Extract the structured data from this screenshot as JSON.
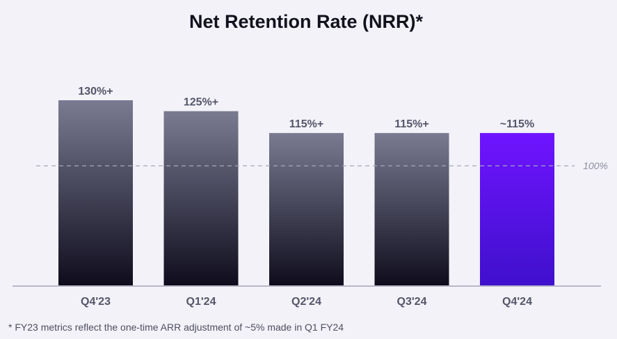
{
  "chart_data": {
    "type": "bar",
    "title": "Net Retention Rate (NRR)*",
    "categories": [
      "Q4'23",
      "Q1'24",
      "Q2'24",
      "Q3'24",
      "Q4'24"
    ],
    "values": [
      130,
      125,
      115,
      115,
      115
    ],
    "data_labels": [
      "130%+",
      "125%+",
      "115%+",
      "115%+",
      "~115%"
    ],
    "highlight_index": 4,
    "reference_line": {
      "value": 100,
      "label": "100%"
    },
    "ylim": [
      45,
      130
    ],
    "grid": false,
    "footnote": "* FY23 metrics reflect the one-time ARR adjustment of ~5% made in Q1 FY24",
    "colors": {
      "bar_top": "#7a7b92",
      "bar_bottom": "#0e0c1c",
      "highlight_top": "#6f14ff",
      "highlight_bottom": "#3f10cc",
      "baseline": "#b8b8cc",
      "reference_line": "#a8a8b8",
      "background": "#f2f2f8"
    }
  }
}
